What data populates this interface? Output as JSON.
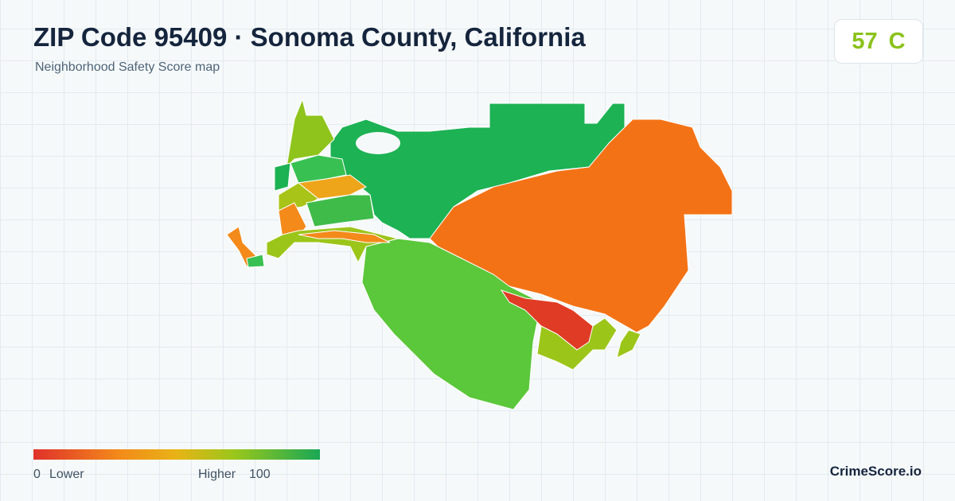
{
  "header": {
    "title": "ZIP Code 95409 · Sonoma County, California",
    "subtitle": "Neighborhood Safety Score map"
  },
  "score": {
    "value": "57",
    "grade": "C"
  },
  "legend": {
    "min": "0",
    "min_label": "Lower",
    "max_label": "Higher",
    "max": "100"
  },
  "brand": "CrimeScore.io"
}
